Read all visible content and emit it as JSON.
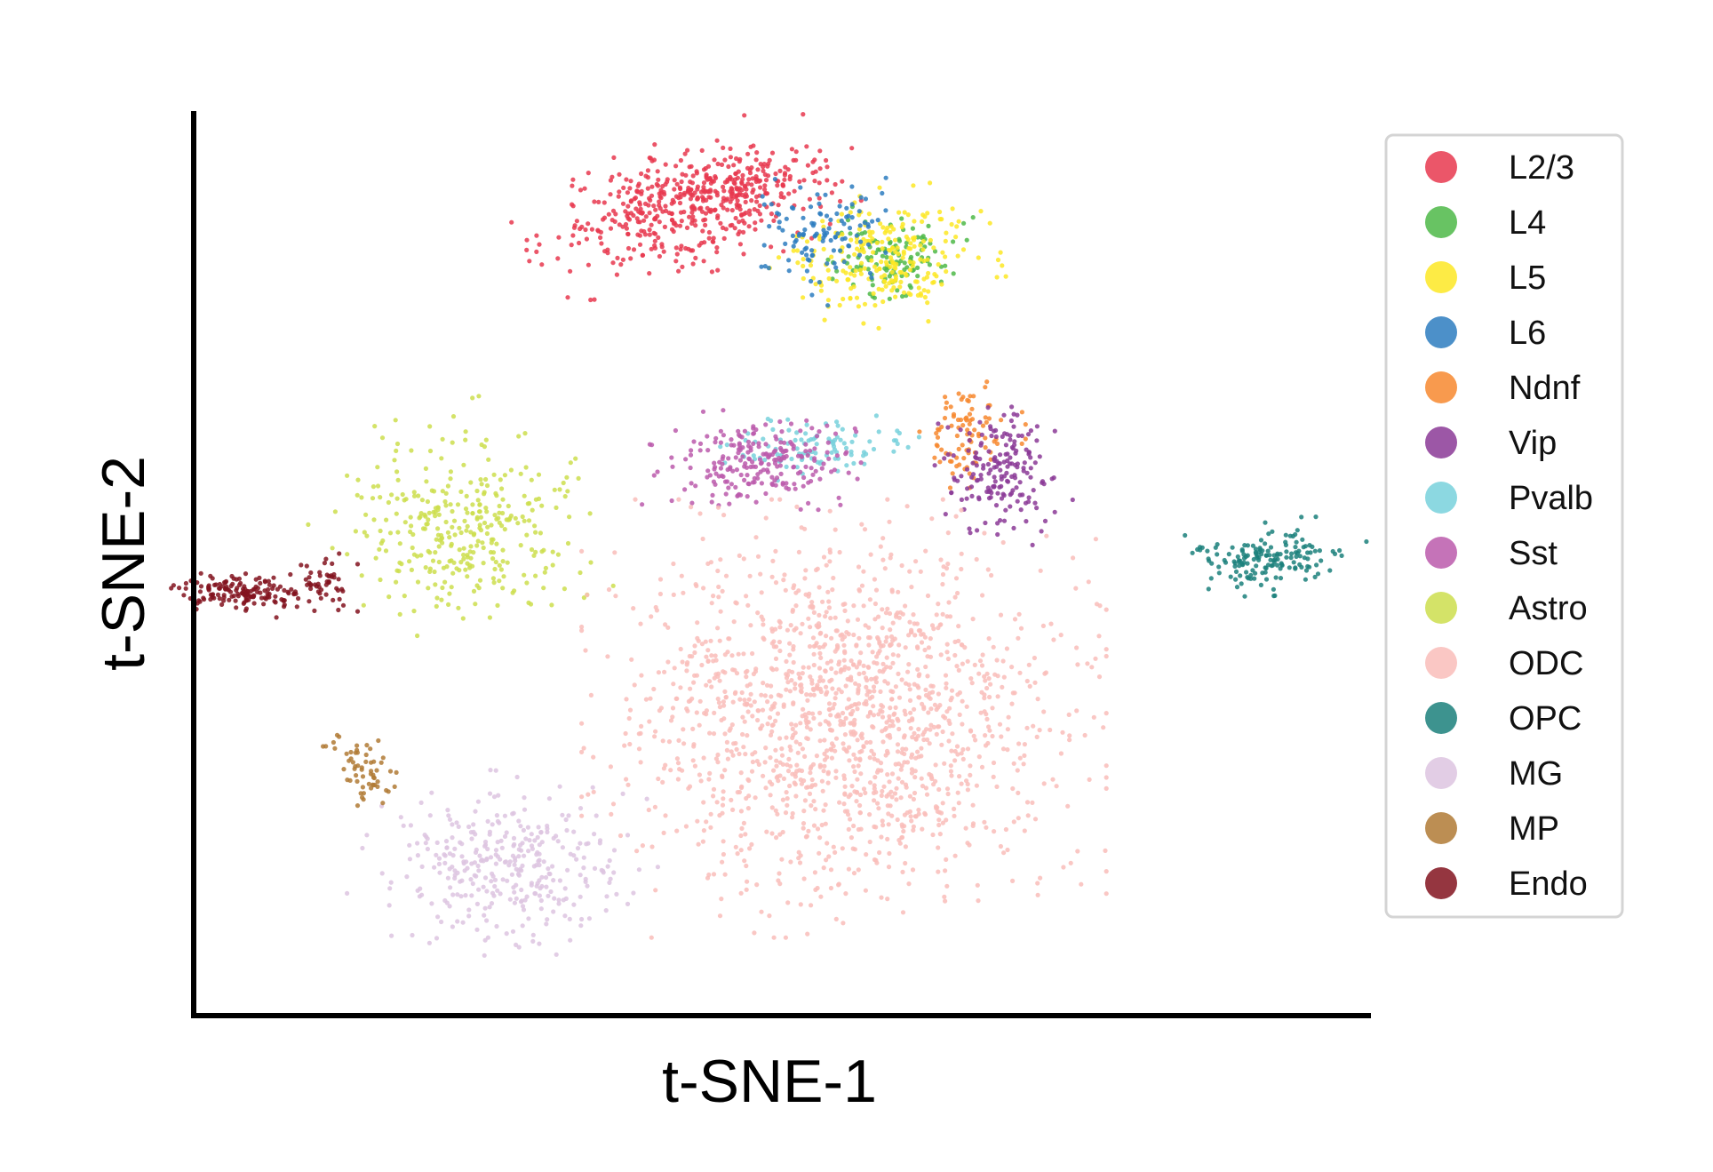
{
  "chart_data": {
    "type": "scatter",
    "title": "",
    "xlabel": "t-SNE-1",
    "ylabel": "t-SNE-2",
    "xlim": [
      -50,
      55
    ],
    "ylim": [
      -48,
      54
    ],
    "ticks_shown": false,
    "grid": false,
    "legend": "right",
    "series": [
      {
        "name": "L2/3",
        "color": "#e8384f",
        "clusters": [
          {
            "cx": -7,
            "cy": 43,
            "sx": 5.5,
            "sy": 3,
            "rot": 20,
            "n": 380
          },
          {
            "cx": -1,
            "cy": 45,
            "sx": 4,
            "sy": 2,
            "rot": 5,
            "n": 160
          }
        ]
      },
      {
        "name": "L4",
        "color": "#4db848",
        "clusters": [
          {
            "cx": 12.5,
            "cy": 37.5,
            "sx": 2.8,
            "sy": 2.2,
            "rot": 0,
            "n": 120
          }
        ]
      },
      {
        "name": "L5",
        "color": "#fde725",
        "clusters": [
          {
            "cx": 11.5,
            "cy": 37.5,
            "sx": 4,
            "sy": 3,
            "rot": 10,
            "n": 240
          }
        ]
      },
      {
        "name": "L6",
        "color": "#2d7cc0",
        "clusters": [
          {
            "cx": 6,
            "cy": 40.5,
            "sx": 2.5,
            "sy": 3.5,
            "rot": -30,
            "n": 110
          }
        ]
      },
      {
        "name": "Ndnf",
        "color": "#f7882f",
        "clusters": [
          {
            "cx": 19,
            "cy": 17.5,
            "sx": 2,
            "sy": 2.3,
            "rot": 0,
            "n": 90
          }
        ]
      },
      {
        "name": "Vip",
        "color": "#8b3a96",
        "clusters": [
          {
            "cx": 22,
            "cy": 13.5,
            "sx": 2.2,
            "sy": 3.5,
            "rot": 10,
            "n": 180
          }
        ]
      },
      {
        "name": "Pvalb",
        "color": "#78d1dc",
        "clusters": [
          {
            "cx": 6,
            "cy": 16,
            "sx": 3.5,
            "sy": 1.4,
            "rot": 0,
            "n": 100
          }
        ]
      },
      {
        "name": "Sst",
        "color": "#bb5bac",
        "clusters": [
          {
            "cx": 0,
            "cy": 14.5,
            "sx": 4,
            "sy": 2.3,
            "rot": 5,
            "n": 230
          }
        ]
      },
      {
        "name": "Astro",
        "color": "#cdde4d",
        "clusters": [
          {
            "cx": -26,
            "cy": 7.5,
            "sx": 5,
            "sy": 5,
            "rot": 20,
            "n": 340
          }
        ]
      },
      {
        "name": "ODC",
        "color": "#f9bdba",
        "clusters": [
          {
            "cx": 8,
            "cy": -14.5,
            "sx": 9,
            "sy": 9.5,
            "rot": 0,
            "n": 1500
          }
        ]
      },
      {
        "name": "OPC",
        "color": "#1b807b",
        "clusters": [
          {
            "cx": 46,
            "cy": 3.5,
            "sx": 3.5,
            "sy": 1.6,
            "rot": 10,
            "n": 160
          }
        ]
      },
      {
        "name": "MG",
        "color": "#ddc4e1",
        "clusters": [
          {
            "cx": -22,
            "cy": -31,
            "sx": 5,
            "sy": 4,
            "rot": -15,
            "n": 340
          }
        ]
      },
      {
        "name": "MP",
        "color": "#b07a35",
        "clusters": [
          {
            "cx": -35,
            "cy": -20.5,
            "sx": 1.1,
            "sy": 2,
            "rot": 20,
            "n": 60
          }
        ]
      },
      {
        "name": "Endo",
        "color": "#82131f",
        "clusters": [
          {
            "cx": -45.5,
            "cy": -0.5,
            "sx": 2.6,
            "sy": 1.0,
            "rot": 0,
            "n": 150
          },
          {
            "cx": -38.5,
            "cy": 1,
            "sx": 1.2,
            "sy": 1.5,
            "rot": 0,
            "n": 50
          }
        ]
      }
    ]
  }
}
